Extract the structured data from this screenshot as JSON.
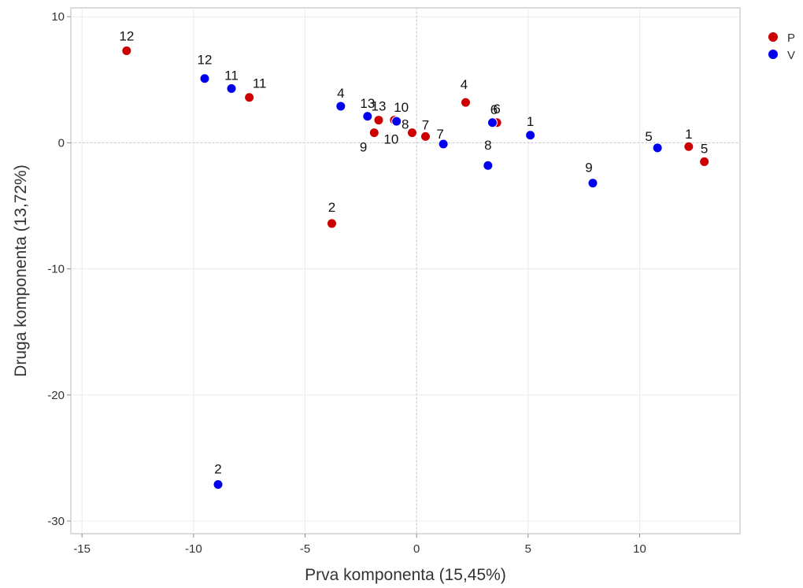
{
  "chart_data": {
    "type": "scatter",
    "xlabel": "Prva komponenta (15,45%)",
    "ylabel": "Druga komponenta (13,72%)",
    "xlim": [
      -15.5,
      14.5
    ],
    "ylim": [
      -31,
      10.7
    ],
    "x_ticks": [
      -15,
      -10,
      -5,
      0,
      5,
      10
    ],
    "y_ticks": [
      10,
      0,
      -10,
      -20,
      -30
    ],
    "x_tick_labels": [
      "-15",
      "-10",
      "-5",
      "0",
      "5",
      "10"
    ],
    "y_tick_labels": [
      "10",
      "0",
      "-10",
      "-20",
      "-30"
    ],
    "grid": true,
    "legend_position": "top-right",
    "series": [
      {
        "name": "P",
        "color": "#cc0000",
        "points": [
          {
            "x": -13.0,
            "y": 7.3,
            "label": "12"
          },
          {
            "x": -7.5,
            "y": 3.6,
            "label": "11"
          },
          {
            "x": -3.8,
            "y": -6.4,
            "label": "2"
          },
          {
            "x": -1.7,
            "y": 1.8,
            "label": "13"
          },
          {
            "x": -1.9,
            "y": 0.8,
            "label": "9"
          },
          {
            "x": -1.0,
            "y": 1.8,
            "label": "10"
          },
          {
            "x": -0.2,
            "y": 0.8,
            "label": "8"
          },
          {
            "x": 0.4,
            "y": 0.5,
            "label": "7"
          },
          {
            "x": 2.2,
            "y": 3.2,
            "label": "4"
          },
          {
            "x": 3.6,
            "y": 1.6,
            "label": "6"
          },
          {
            "x": 12.2,
            "y": -0.3,
            "label": "1"
          },
          {
            "x": 12.9,
            "y": -1.5,
            "label": "5"
          }
        ]
      },
      {
        "name": "V",
        "color": "#0000ee",
        "points": [
          {
            "x": -9.5,
            "y": 5.1,
            "label": "12"
          },
          {
            "x": -8.3,
            "y": 4.3,
            "label": "11"
          },
          {
            "x": -8.9,
            "y": -27.1,
            "label": "2"
          },
          {
            "x": -3.4,
            "y": 2.9,
            "label": "4"
          },
          {
            "x": -2.2,
            "y": 2.1,
            "label": "13"
          },
          {
            "x": -0.9,
            "y": 1.7,
            "label": "10"
          },
          {
            "x": 1.2,
            "y": -0.1,
            "label": "7"
          },
          {
            "x": 3.2,
            "y": -1.8,
            "label": "8"
          },
          {
            "x": 3.4,
            "y": 1.6,
            "label": "6"
          },
          {
            "x": 5.1,
            "y": 0.6,
            "label": "1"
          },
          {
            "x": 7.9,
            "y": -3.2,
            "label": "9"
          },
          {
            "x": 10.8,
            "y": -0.4,
            "label": "5"
          }
        ]
      }
    ]
  }
}
